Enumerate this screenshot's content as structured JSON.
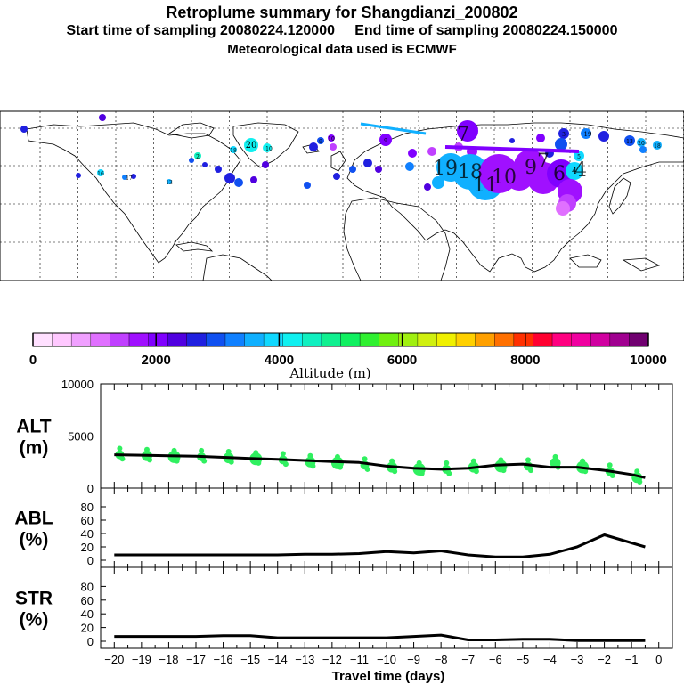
{
  "header": {
    "title": "Retroplume summary for Shangdianzi_200802",
    "subtitle": "Start time of sampling 20080224.120000     End time of sampling 20080224.150000",
    "met_line": "Meteorological data used is ECMWF"
  },
  "colorbar": {
    "label": "Altitude (m)",
    "ticks": [
      "0",
      "2000",
      "4000",
      "6000",
      "8000",
      "10000"
    ],
    "colors": [
      "#ffe0ff",
      "#ffc8ff",
      "#f0a0ff",
      "#e070ff",
      "#c040ff",
      "#a010ff",
      "#8000ff",
      "#5000e0",
      "#2020e0",
      "#1050f0",
      "#1080ff",
      "#10b0ff",
      "#10d8ff",
      "#10f0f0",
      "#10f0c0",
      "#10f090",
      "#10f060",
      "#30f030",
      "#70f010",
      "#a0f010",
      "#d0f010",
      "#f0f000",
      "#ffd000",
      "#ffa000",
      "#ff7000",
      "#ff3000",
      "#ff0030",
      "#ff0080",
      "#f000a0",
      "#d000a0",
      "#a00090",
      "#700070"
    ]
  },
  "map": {
    "plume_labels": [
      "20",
      "19",
      "18",
      "17",
      "16",
      "15",
      "14",
      "13",
      "12",
      "11",
      "10",
      "9",
      "8",
      "7",
      "6",
      "5",
      "4",
      "3",
      "2",
      "1"
    ],
    "big_labels": [
      "19",
      "18",
      "11",
      "10",
      "9",
      "7",
      "6",
      "4",
      "3"
    ]
  },
  "chart_data": [
    {
      "type": "line",
      "panel": "ALT",
      "label_line1": "ALT",
      "label_line2": "(m)",
      "title": "",
      "xlabel": "Travel time (days)",
      "ylabel": "ALT (m)",
      "ylim": [
        0,
        10000
      ],
      "yticks": [
        "10000",
        "5000",
        "0"
      ],
      "x": [
        -20,
        -19,
        -18,
        -17,
        -16,
        -15,
        -14,
        -13,
        -12,
        -11,
        -10,
        -9,
        -8,
        -7,
        -6,
        -5,
        -4,
        -3,
        -2,
        -1,
        -0.5
      ],
      "values": [
        3200,
        3150,
        3100,
        3050,
        2950,
        2850,
        2750,
        2650,
        2550,
        2450,
        2100,
        1900,
        1800,
        1900,
        2200,
        2300,
        2000,
        2000,
        1700,
        1300,
        1000
      ],
      "clusters_x": [
        -19.8,
        -18.8,
        -17.8,
        -16.8,
        -15.8,
        -14.8,
        -13.8,
        -12.8,
        -11.8,
        -10.8,
        -9.8,
        -8.8,
        -7.8,
        -6.8,
        -5.8,
        -4.8,
        -3.8,
        -2.8,
        -1.8,
        -0.8
      ],
      "clusters_y": [
        3200,
        3100,
        3000,
        3000,
        2900,
        2800,
        2700,
        2500,
        2400,
        2200,
        2000,
        1800,
        1800,
        2000,
        2100,
        2100,
        2400,
        2000,
        1600,
        1000
      ]
    },
    {
      "type": "line",
      "panel": "ABL",
      "label_line1": "ABL",
      "label_line2": "(%)",
      "ylim": [
        0,
        100
      ],
      "yticks": [
        "80",
        "60",
        "40",
        "20",
        "0"
      ],
      "x": [
        -20,
        -19,
        -18,
        -17,
        -16,
        -15,
        -14,
        -13,
        -12,
        -11,
        -10,
        -9,
        -8,
        -7,
        -6,
        -5,
        -4,
        -3,
        -2,
        -1,
        -0.5
      ],
      "values": [
        8,
        8,
        8,
        8,
        8,
        8,
        8,
        9,
        9,
        10,
        13,
        11,
        14,
        8,
        5,
        5,
        9,
        20,
        38,
        26,
        20
      ]
    },
    {
      "type": "line",
      "panel": "STR",
      "label_line1": "STR",
      "label_line2": "(%)",
      "ylim": [
        0,
        100
      ],
      "yticks": [
        "80",
        "60",
        "40",
        "20",
        "0"
      ],
      "x": [
        -20,
        -19,
        -18,
        -17,
        -16,
        -15,
        -14,
        -13,
        -12,
        -11,
        -10,
        -9,
        -8,
        -7,
        -6,
        -5,
        -4,
        -3,
        -2,
        -1,
        -0.5
      ],
      "values": [
        7,
        7,
        7,
        7,
        8,
        8,
        5,
        5,
        5,
        5,
        5,
        7,
        9,
        2,
        2,
        3,
        3,
        1,
        1,
        1,
        1
      ]
    }
  ],
  "xaxis": {
    "label": "Travel time (days)",
    "ticks": [
      "−20",
      "−19",
      "−18",
      "−17",
      "−16",
      "−15",
      "−14",
      "−13",
      "−12",
      "−11",
      "−10",
      "−9",
      "−8",
      "−7",
      "−6",
      "−5",
      "−4",
      "−3",
      "−2",
      "−1",
      "0"
    ]
  }
}
